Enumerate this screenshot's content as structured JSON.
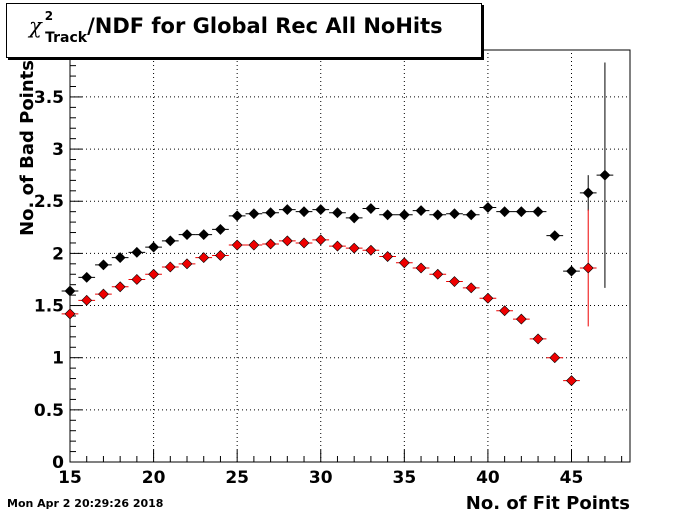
{
  "chart_data": {
    "type": "scatter",
    "title": {
      "symbol": "χ",
      "superscript": "2",
      "subscript": "Track",
      "text": "/NDF for Global Rec All NoHits"
    },
    "xlabel": "No. of Fit Points",
    "ylabel": "No. of Bad Points",
    "xlim": [
      15,
      48.5
    ],
    "ylim": [
      0,
      3.95
    ],
    "x_ticks": [
      15,
      20,
      25,
      30,
      35,
      40,
      45
    ],
    "x_tick_labels": [
      "15",
      "20",
      "25",
      "30",
      "35",
      "40",
      "45"
    ],
    "y_ticks": [
      0,
      0.5,
      1,
      1.5,
      2,
      2.5,
      3,
      3.5
    ],
    "y_tick_labels": [
      "0",
      "0.5",
      "1",
      "1.5",
      "2",
      "2.5",
      "3",
      "3.5"
    ],
    "grid": true,
    "series": [
      {
        "color": "#000000",
        "x": [
          15,
          16,
          17,
          18,
          19,
          20,
          21,
          22,
          23,
          24,
          25,
          26,
          27,
          28,
          29,
          30,
          31,
          32,
          33,
          34,
          35,
          36,
          37,
          38,
          39,
          40,
          41,
          42,
          43,
          44,
          45,
          46,
          47
        ],
        "y": [
          1.64,
          1.77,
          1.89,
          1.96,
          2.01,
          2.06,
          2.12,
          2.18,
          2.18,
          2.23,
          2.36,
          2.38,
          2.39,
          2.42,
          2.4,
          2.42,
          2.39,
          2.34,
          2.43,
          2.37,
          2.37,
          2.41,
          2.37,
          2.38,
          2.37,
          2.44,
          2.4,
          2.4,
          2.4,
          2.17,
          1.83,
          2.58,
          2.75
        ],
        "yerr": [
          0.02,
          0.02,
          0.02,
          0.02,
          0.02,
          0.02,
          0.02,
          0.02,
          0.02,
          0.02,
          0.02,
          0.02,
          0.02,
          0.02,
          0.02,
          0.02,
          0.02,
          0.02,
          0.02,
          0.02,
          0.02,
          0.02,
          0.02,
          0.02,
          0.02,
          0.02,
          0.02,
          0.02,
          0.02,
          0.03,
          0.05,
          0.17,
          1.08
        ]
      },
      {
        "color": "#ee0000",
        "x": [
          15,
          16,
          17,
          18,
          19,
          20,
          21,
          22,
          23,
          24,
          25,
          26,
          27,
          28,
          29,
          30,
          31,
          32,
          33,
          34,
          35,
          36,
          37,
          38,
          39,
          40,
          41,
          42,
          43,
          44,
          45,
          46
        ],
        "y": [
          1.42,
          1.55,
          1.61,
          1.68,
          1.75,
          1.8,
          1.87,
          1.9,
          1.96,
          1.98,
          2.08,
          2.08,
          2.09,
          2.12,
          2.1,
          2.13,
          2.07,
          2.05,
          2.03,
          1.97,
          1.91,
          1.86,
          1.8,
          1.73,
          1.67,
          1.57,
          1.45,
          1.37,
          1.18,
          1.0,
          0.78,
          1.86
        ],
        "yerr": [
          0.02,
          0.02,
          0.02,
          0.02,
          0.02,
          0.02,
          0.02,
          0.02,
          0.02,
          0.02,
          0.02,
          0.02,
          0.02,
          0.02,
          0.02,
          0.02,
          0.02,
          0.02,
          0.02,
          0.02,
          0.02,
          0.02,
          0.02,
          0.02,
          0.02,
          0.02,
          0.02,
          0.02,
          0.02,
          0.02,
          0.03,
          0.56
        ]
      }
    ]
  },
  "timestamp": "Mon Apr  2 20:29:26 2018"
}
